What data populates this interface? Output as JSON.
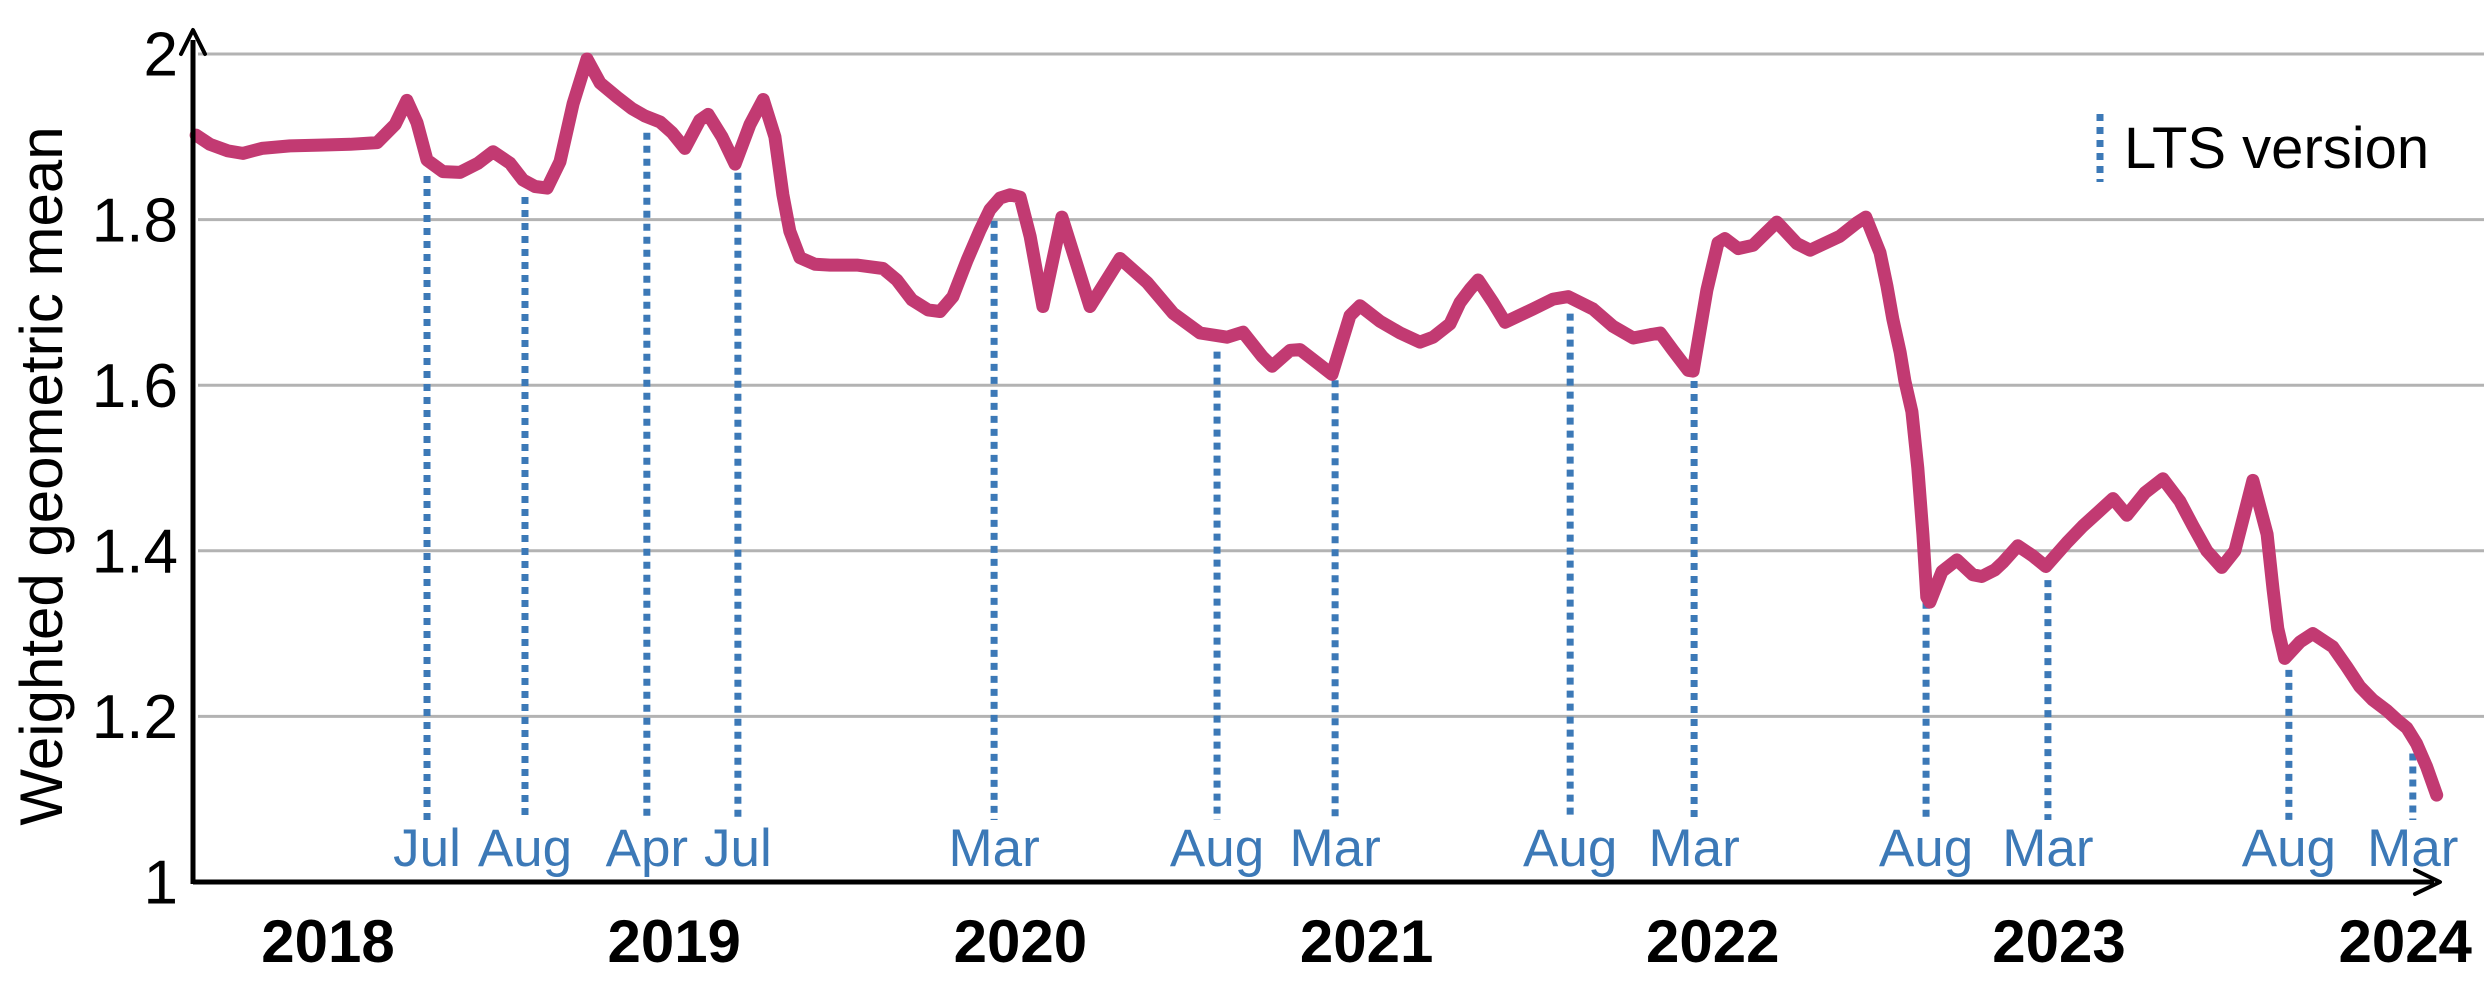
{
  "chart_data": {
    "type": "line",
    "title": "",
    "xlabel": "",
    "ylabel": "Weighted geometric mean",
    "legend_label": "LTS version",
    "legend_position": "top-right",
    "grid": "horizontal",
    "xlim": [
      2017.61,
      2024.25
    ],
    "ylim": [
      1.0,
      2.02
    ],
    "yticks": [
      {
        "label": "2",
        "value": 2.0
      },
      {
        "label": "1.8",
        "value": 1.8
      },
      {
        "label": "1.6",
        "value": 1.6
      },
      {
        "label": "1.4",
        "value": 1.4
      },
      {
        "label": "1.2",
        "value": 1.2
      },
      {
        "label": "1",
        "value": 1.0
      }
    ],
    "grid_values": [
      2.0,
      1.8,
      1.6,
      1.4,
      1.2
    ],
    "xticks": [
      {
        "label": "2018",
        "value": 2018
      },
      {
        "label": "2019",
        "value": 2019
      },
      {
        "label": "2020",
        "value": 2020
      },
      {
        "label": "2021",
        "value": 2021
      },
      {
        "label": "2022",
        "value": 2022
      },
      {
        "label": "2023",
        "value": 2023
      },
      {
        "label": "2024",
        "value": 2024
      }
    ],
    "lts_releases": [
      {
        "label": "Jul",
        "year": 2018.286
      },
      {
        "label": "Aug",
        "year": 2018.569
      },
      {
        "label": "Apr",
        "year": 2018.921
      },
      {
        "label": "Jul",
        "year": 2019.184
      },
      {
        "label": "Mar",
        "year": 2019.924
      },
      {
        "label": "Aug",
        "year": 2020.568
      },
      {
        "label": "Mar",
        "year": 2020.909
      },
      {
        "label": "Aug",
        "year": 2021.588
      },
      {
        "label": "Mar",
        "year": 2021.946
      },
      {
        "label": "Aug",
        "year": 2022.616
      },
      {
        "label": "Mar",
        "year": 2022.968
      },
      {
        "label": "Aug",
        "year": 2023.664
      },
      {
        "label": "Mar",
        "year": 2024.022
      }
    ],
    "colors": {
      "series": "#c23a72",
      "lts": "#3c79b7",
      "grid": "#b3b3b3",
      "axis": "#000000",
      "tick_text": "#000000"
    },
    "series": [
      {
        "name": "Weighted geometric mean",
        "color": "#c23a72",
        "points": [
          [
            2017.619,
            1.902
          ],
          [
            2017.659,
            1.891
          ],
          [
            2017.711,
            1.883
          ],
          [
            2017.754,
            1.88
          ],
          [
            2017.809,
            1.886
          ],
          [
            2017.89,
            1.889
          ],
          [
            2017.977,
            1.89
          ],
          [
            2018.064,
            1.891
          ],
          [
            2018.142,
            1.893
          ],
          [
            2018.194,
            1.915
          ],
          [
            2018.228,
            1.944
          ],
          [
            2018.257,
            1.917
          ],
          [
            2018.286,
            1.872
          ],
          [
            2018.332,
            1.858
          ],
          [
            2018.381,
            1.857
          ],
          [
            2018.433,
            1.868
          ],
          [
            2018.477,
            1.882
          ],
          [
            2018.526,
            1.868
          ],
          [
            2018.563,
            1.848
          ],
          [
            2018.598,
            1.84
          ],
          [
            2018.633,
            1.838
          ],
          [
            2018.67,
            1.87
          ],
          [
            2018.708,
            1.94
          ],
          [
            2018.748,
            1.994
          ],
          [
            2018.786,
            1.965
          ],
          [
            2018.835,
            1.948
          ],
          [
            2018.878,
            1.934
          ],
          [
            2018.916,
            1.925
          ],
          [
            2018.959,
            1.918
          ],
          [
            2018.994,
            1.905
          ],
          [
            2019.031,
            1.886
          ],
          [
            2019.074,
            1.92
          ],
          [
            2019.098,
            1.927
          ],
          [
            2019.138,
            1.9
          ],
          [
            2019.176,
            1.867
          ],
          [
            2019.219,
            1.915
          ],
          [
            2019.257,
            1.945
          ],
          [
            2019.291,
            1.9
          ],
          [
            2019.314,
            1.83
          ],
          [
            2019.334,
            1.786
          ],
          [
            2019.363,
            1.754
          ],
          [
            2019.407,
            1.746
          ],
          [
            2019.45,
            1.745
          ],
          [
            2019.528,
            1.745
          ],
          [
            2019.603,
            1.741
          ],
          [
            2019.643,
            1.727
          ],
          [
            2019.687,
            1.703
          ],
          [
            2019.733,
            1.691
          ],
          [
            2019.768,
            1.689
          ],
          [
            2019.805,
            1.707
          ],
          [
            2019.846,
            1.751
          ],
          [
            2019.883,
            1.787
          ],
          [
            2019.912,
            1.812
          ],
          [
            2019.941,
            1.826
          ],
          [
            2019.97,
            1.83
          ],
          [
            2019.999,
            1.827
          ],
          [
            2020.028,
            1.78
          ],
          [
            2020.065,
            1.695
          ],
          [
            2020.12,
            1.803
          ],
          [
            2020.201,
            1.695
          ],
          [
            2020.288,
            1.753
          ],
          [
            2020.366,
            1.724
          ],
          [
            2020.441,
            1.687
          ],
          [
            2020.519,
            1.663
          ],
          [
            2020.597,
            1.658
          ],
          [
            2020.643,
            1.664
          ],
          [
            2020.698,
            1.635
          ],
          [
            2020.727,
            1.623
          ],
          [
            2020.779,
            1.642
          ],
          [
            2020.808,
            1.643
          ],
          [
            2020.857,
            1.627
          ],
          [
            2020.9,
            1.613
          ],
          [
            2020.952,
            1.684
          ],
          [
            2020.981,
            1.696
          ],
          [
            2021.039,
            1.677
          ],
          [
            2021.097,
            1.663
          ],
          [
            2021.154,
            1.652
          ],
          [
            2021.192,
            1.658
          ],
          [
            2021.241,
            1.674
          ],
          [
            2021.27,
            1.7
          ],
          [
            2021.299,
            1.716
          ],
          [
            2021.322,
            1.727
          ],
          [
            2021.365,
            1.7
          ],
          [
            2021.4,
            1.676
          ],
          [
            2021.481,
            1.692
          ],
          [
            2021.539,
            1.704
          ],
          [
            2021.582,
            1.707
          ],
          [
            2021.654,
            1.692
          ],
          [
            2021.712,
            1.671
          ],
          [
            2021.77,
            1.657
          ],
          [
            2021.819,
            1.661
          ],
          [
            2021.848,
            1.663
          ],
          [
            2021.885,
            1.642
          ],
          [
            2021.929,
            1.618
          ],
          [
            2021.943,
            1.617
          ],
          [
            2021.983,
            1.715
          ],
          [
            2022.015,
            1.772
          ],
          [
            2022.035,
            1.777
          ],
          [
            2022.073,
            1.765
          ],
          [
            2022.116,
            1.769
          ],
          [
            2022.185,
            1.797
          ],
          [
            2022.243,
            1.771
          ],
          [
            2022.281,
            1.763
          ],
          [
            2022.367,
            1.78
          ],
          [
            2022.416,
            1.796
          ],
          [
            2022.442,
            1.803
          ],
          [
            2022.483,
            1.76
          ],
          [
            2022.503,
            1.72
          ],
          [
            2022.52,
            1.68
          ],
          [
            2022.541,
            1.64
          ],
          [
            2022.555,
            1.605
          ],
          [
            2022.575,
            1.568
          ],
          [
            2022.592,
            1.5
          ],
          [
            2022.607,
            1.42
          ],
          [
            2022.618,
            1.344
          ],
          [
            2022.627,
            1.338
          ],
          [
            2022.662,
            1.375
          ],
          [
            2022.705,
            1.389
          ],
          [
            2022.751,
            1.371
          ],
          [
            2022.777,
            1.369
          ],
          [
            2022.815,
            1.377
          ],
          [
            2022.838,
            1.386
          ],
          [
            2022.881,
            1.406
          ],
          [
            2022.91,
            1.398
          ],
          [
            2022.924,
            1.394
          ],
          [
            2022.962,
            1.381
          ],
          [
            2023.023,
            1.41
          ],
          [
            2023.069,
            1.43
          ],
          [
            2023.109,
            1.445
          ],
          [
            2023.156,
            1.463
          ],
          [
            2023.196,
            1.443
          ],
          [
            2023.248,
            1.47
          ],
          [
            2023.3,
            1.487
          ],
          [
            2023.349,
            1.46
          ],
          [
            2023.387,
            1.43
          ],
          [
            2023.427,
            1.4
          ],
          [
            2023.47,
            1.38
          ],
          [
            2023.508,
            1.4
          ],
          [
            2023.56,
            1.485
          ],
          [
            2023.601,
            1.42
          ],
          [
            2023.618,
            1.354
          ],
          [
            2023.632,
            1.306
          ],
          [
            2023.652,
            1.27
          ],
          [
            2023.696,
            1.29
          ],
          [
            2023.733,
            1.3
          ],
          [
            2023.791,
            1.284
          ],
          [
            2023.831,
            1.26
          ],
          [
            2023.869,
            1.236
          ],
          [
            2023.906,
            1.22
          ],
          [
            2023.947,
            1.207
          ],
          [
            2023.976,
            1.196
          ],
          [
            2024.005,
            1.186
          ],
          [
            2024.033,
            1.167
          ],
          [
            2024.062,
            1.139
          ],
          [
            2024.091,
            1.105
          ]
        ]
      }
    ]
  }
}
